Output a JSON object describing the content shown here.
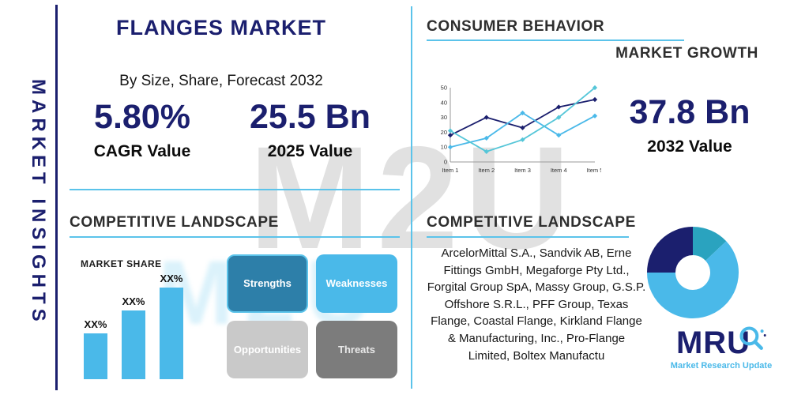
{
  "colors": {
    "navy": "#1b1f6e",
    "light_blue": "#4ab9e9",
    "teal": "#2fb4cf",
    "steel_blue": "#2d7fa9",
    "light_gray": "#c9c9c9",
    "dark_gray": "#7c7c7c"
  },
  "sidebar": {
    "label": "MARKET INSIGHTS"
  },
  "header": {
    "title": "FLANGES MARKET",
    "subtitle": "By Size, Share, Forecast 2032"
  },
  "stats": {
    "cagr": {
      "value": "5.80%",
      "label": "CAGR Value"
    },
    "value_2025": {
      "value": "25.5 Bn",
      "label": "2025 Value"
    },
    "value_2032": {
      "value": "37.8 Bn",
      "label": "2032 Value"
    }
  },
  "sections": {
    "consumer_behavior": "CONSUMER BEHAVIOR",
    "market_growth": "MARKET GROWTH",
    "competitive_landscape_left": "COMPETITIVE LANDSCAPE",
    "competitive_landscape_right": "COMPETITIVE LANDSCAPE",
    "market_share": "MARKET SHARE"
  },
  "swot": {
    "items": [
      {
        "label": "Strengths",
        "color": "#2d7fa9",
        "text_color": "#ffffff",
        "border": "#5bc3ea"
      },
      {
        "label": "Weaknesses",
        "color": "#4ab9e9",
        "text_color": "#ffffff",
        "border": ""
      },
      {
        "label": "Opportunities",
        "color": "#c9c9c9",
        "text_color": "#ffffff",
        "border": ""
      },
      {
        "label": "Threats",
        "color": "#7c7c7c",
        "text_color": "#e9e9e9",
        "border": ""
      }
    ]
  },
  "companies": {
    "text": "ArcelorMittal S.A., Sandvik AB, Erne Fittings GmbH, Megaforge Pty Ltd., Forgital Group SpA, Massy Group, G.S.P. Offshore S.R.L., PFF Group, Texas Flange, Coastal Flange, Kirkland Flange & Manufacturing, Inc., Pro-Flange Limited, Boltex Manufactu"
  },
  "logo": {
    "name": "MRU",
    "tagline": "Market Research Update"
  },
  "watermark": {
    "text": "M2U"
  },
  "chart_data": [
    {
      "type": "line",
      "title": "MARKET GROWTH",
      "x": [
        "Item 1",
        "Item 2",
        "Item 3",
        "Item 4",
        "Item 5"
      ],
      "series": [
        {
          "name": "series-1",
          "color": "#1b1f6e",
          "values": [
            18,
            30,
            23,
            37,
            42
          ]
        },
        {
          "name": "series-2",
          "color": "#4ab9e9",
          "values": [
            10,
            16,
            33,
            18,
            31
          ]
        },
        {
          "name": "series-3",
          "color": "#55c6d8",
          "values": [
            21,
            7,
            15,
            30,
            50
          ]
        }
      ],
      "ylim": [
        0,
        50
      ],
      "yticks": [
        0,
        10,
        20,
        30,
        40,
        50
      ],
      "grid": false,
      "legend": "none"
    },
    {
      "type": "bar",
      "title": "MARKET SHARE",
      "categories": [
        "XX%",
        "XX%",
        "XX%"
      ],
      "values": [
        30,
        45,
        60
      ],
      "ylim": [
        0,
        62
      ],
      "bar_color": "#4ab9e9"
    },
    {
      "type": "pie",
      "title": "COMPETITIVE LANDSCAPE",
      "donut": true,
      "start_angle_deg": 180,
      "slices": [
        {
          "name": "slice-navy",
          "value": 25,
          "color": "#1b1f6e"
        },
        {
          "name": "slice-teal",
          "value": 13,
          "color": "#2aa3bf"
        },
        {
          "name": "slice-light-blue",
          "value": 62,
          "color": "#4ab9e9"
        }
      ]
    }
  ]
}
